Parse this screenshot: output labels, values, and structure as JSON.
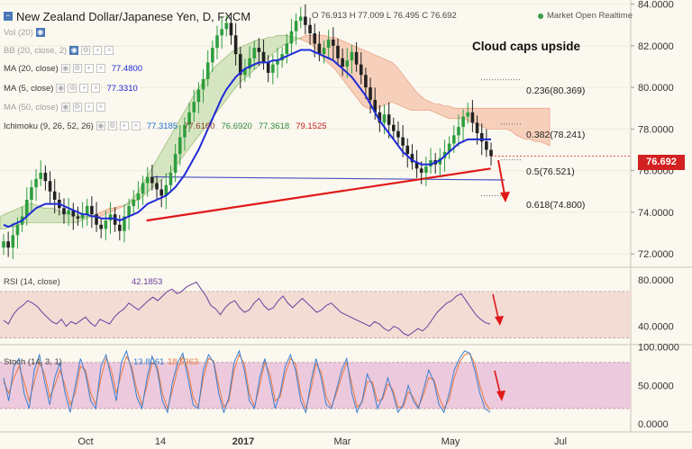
{
  "header": {
    "title": "New Zealand Dollar/Japanese Yen, D, FXCM",
    "ohlc": "O 76.913 H 77.009 L 76.495 C 76.692",
    "market_status": "Market Open Realtime"
  },
  "indicators": [
    {
      "name": "Vol (20)",
      "value": ""
    },
    {
      "name": "BB (20, close, 2)",
      "value": ""
    },
    {
      "name": "MA (20, close)",
      "value": "77.4800"
    },
    {
      "name": "MA (5, close)",
      "value": "77.3310"
    },
    {
      "name": "MA (50, close)",
      "value": ""
    },
    {
      "name": "Ichimoku (9, 26, 52, 26)",
      "values": [
        "77.3185",
        "77.6160",
        "76.6920",
        "77.3618",
        "79.1525"
      ]
    }
  ],
  "annotations": {
    "cloud_note": "Cloud caps upside",
    "fib_levels": [
      "0.236(80.369)",
      "0.382(78.241)",
      "0.5(76.521)",
      "0.618(74.800)"
    ],
    "last_price": "76.692"
  },
  "colors": {
    "candle_up": "#2e9e3e",
    "candle_down": "#222222",
    "ma20": "#1f2bd6",
    "trendline": "#e01818",
    "horizontal_line": "#4a4fc0",
    "cloud_bull": "#cfe2b8",
    "cloud_bear": "#f6c9b2",
    "rsi_line": "#6a3fa0",
    "stoch_k": "#3a7fd0",
    "stoch_d": "#e87a40",
    "badge": "#d32020"
  },
  "chart_data": [
    {
      "type": "candlestick",
      "title": "New Zealand Dollar/Japanese Yen, D, FXCM",
      "x_ticks": [
        "Oct",
        "14",
        "2017",
        "Mar",
        "May",
        "Jul"
      ],
      "y_ticks": [
        "84.0000",
        "82.0000",
        "80.0000",
        "78.0000",
        "76.0000",
        "74.0000",
        "72.0000"
      ],
      "ylim": [
        71.4,
        84.2
      ],
      "close_series": [
        72.6,
        72.3,
        72.9,
        73.4,
        73.8,
        74.6,
        75.2,
        75.6,
        75.9,
        75.5,
        75.0,
        74.6,
        74.2,
        73.9,
        74.1,
        73.8,
        73.7,
        73.9,
        74.3,
        73.9,
        73.4,
        73.2,
        73.6,
        73.9,
        73.4,
        73.1,
        73.8,
        74.3,
        74.6,
        74.9,
        75.4,
        75.7,
        75.4,
        75.1,
        74.8,
        75.3,
        75.9,
        76.8,
        77.6,
        78.2,
        78.8,
        79.3,
        79.9,
        80.4,
        81.2,
        81.9,
        82.5,
        82.8,
        83.1,
        82.5,
        81.6,
        80.6,
        80.9,
        81.4,
        81.9,
        81.7,
        81.2,
        80.7,
        81.1,
        81.3,
        81.6,
        82.1,
        82.7,
        83.2,
        83.4,
        83.0,
        82.6,
        82.1,
        81.6,
        81.9,
        82.3,
        82.0,
        81.4,
        81.0,
        81.3,
        81.7,
        81.1,
        80.6,
        80.0,
        79.4,
        78.8,
        78.3,
        78.7,
        78.2,
        77.9,
        77.6,
        77.2,
        76.8,
        76.4,
        76.1,
        75.9,
        76.2,
        76.5,
        76.3,
        76.6,
        76.9,
        77.3,
        77.7,
        78.1,
        78.6,
        78.8,
        78.3,
        77.8,
        77.4,
        77.0,
        76.7
      ],
      "ma20": [
        73.4,
        73.3,
        73.4,
        73.5,
        73.6,
        73.8,
        74.0,
        74.2,
        74.3,
        74.4,
        74.4,
        74.4,
        74.4,
        74.3,
        74.2,
        74.1,
        74.0,
        73.9,
        73.9,
        73.8,
        73.8,
        73.7,
        73.7,
        73.7,
        73.7,
        73.6,
        73.7,
        73.8,
        73.9,
        74.0,
        74.2,
        74.4,
        74.5,
        74.6,
        74.7,
        74.8,
        75.0,
        75.2,
        75.5,
        75.8,
        76.2,
        76.6,
        77.0,
        77.5,
        78.0,
        78.5,
        79.0,
        79.5,
        79.9,
        80.2,
        80.5,
        80.7,
        80.9,
        81.0,
        81.1,
        81.2,
        81.2,
        81.2,
        81.3,
        81.3,
        81.4,
        81.5,
        81.6,
        81.7,
        81.8,
        81.8,
        81.8,
        81.7,
        81.6,
        81.5,
        81.4,
        81.3,
        81.1,
        80.9,
        80.7,
        80.5,
        80.2,
        79.9,
        79.6,
        79.2,
        78.8,
        78.4,
        78.1,
        77.8,
        77.5,
        77.2,
        76.9,
        76.7,
        76.5,
        76.4,
        76.3,
        76.3,
        76.3,
        76.4,
        76.5,
        76.7,
        76.9,
        77.1,
        77.3,
        77.4,
        77.5,
        77.5,
        77.5,
        77.5,
        77.5,
        77.5
      ],
      "cloud_top": [
        73.8,
        73.9,
        74.0,
        74.1,
        74.2,
        74.3,
        74.4,
        74.4,
        74.3,
        74.2,
        74.2,
        74.2,
        74.1,
        74.0,
        74.0,
        73.9,
        73.9,
        73.8,
        73.8,
        73.8,
        73.8,
        73.8,
        73.9,
        74.0,
        74.1,
        74.2,
        74.3,
        74.5,
        74.7,
        75.0,
        75.4,
        75.8,
        76.2,
        76.6,
        77.0,
        77.4,
        77.8,
        78.2,
        78.6,
        79.0,
        79.4,
        79.8,
        80.1,
        80.4,
        80.7,
        81.0,
        81.2,
        81.4,
        81.6,
        81.8,
        81.9,
        82.0,
        82.1,
        82.2,
        82.3,
        82.3,
        82.4,
        82.4,
        82.5,
        82.5,
        82.5,
        82.4,
        82.4,
        82.3,
        82.2,
        82.1,
        81.9,
        81.6,
        81.3,
        81.1,
        80.9,
        80.6,
        80.3,
        80.0,
        79.7,
        79.4,
        79.1,
        79.0,
        79.0,
        79.0,
        79.1,
        79.2,
        79.3,
        79.2,
        79.1,
        79.0,
        78.9,
        78.9,
        78.9,
        78.9,
        78.9,
        78.8,
        78.7,
        78.6,
        78.5,
        78.5,
        78.5,
        78.5,
        78.4,
        78.3,
        78.2,
        78.1,
        78.0,
        78.0,
        78.0,
        78.0,
        78.0,
        77.9,
        77.7,
        77.6,
        77.5,
        77.5,
        77.4,
        77.4,
        77.3,
        77.2
      ],
      "cloud_bottom": [
        73.2,
        73.2,
        73.3,
        73.3,
        73.4,
        73.5,
        73.5,
        73.5,
        73.5,
        73.5,
        73.5,
        73.5,
        73.5,
        73.5,
        73.5,
        73.5,
        73.5,
        73.6,
        73.7,
        73.8,
        73.9,
        74.0,
        74.1,
        74.2,
        74.2,
        74.3,
        74.3,
        74.4,
        74.5,
        74.6,
        74.8,
        75.0,
        75.2,
        75.4,
        75.6,
        75.8,
        76.0,
        76.3,
        76.6,
        76.9,
        77.2,
        77.5,
        77.8,
        78.1,
        78.4,
        78.7,
        79.0,
        79.3,
        79.6,
        79.9,
        80.2,
        80.4,
        80.6,
        80.8,
        81.0,
        81.2,
        81.4,
        81.6,
        81.8,
        82.0,
        82.1,
        82.2,
        82.3,
        82.4,
        82.5,
        82.5,
        82.5,
        82.5,
        82.5,
        82.4,
        82.4,
        82.3,
        82.2,
        82.1,
        82.0,
        81.9,
        81.8,
        81.7,
        81.6,
        81.5,
        81.4,
        81.3,
        81.2,
        81.0,
        80.7,
        80.4,
        80.1,
        79.8,
        79.6,
        79.4,
        79.3,
        79.2,
        79.2,
        79.1,
        79.1,
        79.0,
        79.0,
        79.0,
        79.0,
        79.0,
        79.0,
        79.0,
        79.0,
        79.0,
        79.0,
        79.0,
        79.0,
        79.0,
        79.0,
        79.0,
        79.0,
        79.0,
        79.0,
        79.0,
        79.0,
        79.0
      ],
      "horizontal_line": 75.7,
      "trendline": [
        [
          0.268,
          73.6
        ],
        [
          0.968,
          76.1
        ]
      ],
      "fib_values": [
        80.369,
        78.241,
        76.521,
        74.8
      ],
      "last_price": 76.692
    },
    {
      "type": "line",
      "title": "RSI (14, close)",
      "value_label": "42.1853",
      "y_ticks": [
        "80.0000",
        "40.0000"
      ],
      "ylim": [
        25,
        90
      ],
      "band": [
        30,
        70
      ],
      "values": [
        45,
        42,
        50,
        55,
        58,
        62,
        60,
        57,
        52,
        48,
        44,
        42,
        46,
        40,
        44,
        42,
        45,
        48,
        43,
        40,
        46,
        44,
        42,
        48,
        52,
        55,
        60,
        57,
        54,
        58,
        62,
        65,
        62,
        66,
        70,
        72,
        68,
        70,
        74,
        76,
        78,
        72,
        66,
        58,
        55,
        50,
        56,
        60,
        62,
        56,
        52,
        54,
        60,
        64,
        58,
        54,
        56,
        62,
        66,
        60,
        56,
        60,
        64,
        60,
        56,
        52,
        54,
        58,
        60,
        56,
        52,
        50,
        48,
        46,
        44,
        42,
        40,
        44,
        42,
        38,
        36,
        40,
        38,
        34,
        32,
        35,
        38,
        36,
        40,
        46,
        52,
        56,
        60,
        62,
        66,
        68,
        62,
        56,
        50,
        46,
        43,
        42
      ]
    },
    {
      "type": "line",
      "title": "Stoch (14, 3, 1)",
      "value_labels": [
        "13.8061",
        "18.5363"
      ],
      "y_ticks": [
        "100.0000",
        "50.0000",
        "0.0000"
      ],
      "ylim": [
        -8,
        102
      ],
      "band": [
        20,
        80
      ],
      "k": [
        60,
        30,
        75,
        85,
        40,
        20,
        70,
        90,
        55,
        25,
        60,
        80,
        40,
        15,
        50,
        85,
        65,
        30,
        20,
        75,
        90,
        60,
        30,
        80,
        95,
        70,
        35,
        20,
        60,
        88,
        70,
        30,
        15,
        55,
        80,
        92,
        60,
        25,
        20,
        70,
        90,
        80,
        40,
        15,
        35,
        80,
        95,
        70,
        30,
        20,
        60,
        85,
        55,
        20,
        40,
        75,
        90,
        70,
        30,
        15,
        55,
        85,
        60,
        25,
        20,
        45,
        70,
        85,
        40,
        15,
        30,
        65,
        50,
        20,
        35,
        60,
        40,
        15,
        25,
        50,
        30,
        20,
        45,
        70,
        55,
        25,
        15,
        40,
        70,
        85,
        95,
        92,
        70,
        40,
        20,
        15
      ],
      "d": [
        55,
        40,
        60,
        75,
        55,
        30,
        55,
        80,
        65,
        35,
        50,
        70,
        50,
        25,
        40,
        75,
        70,
        40,
        25,
        60,
        85,
        70,
        40,
        65,
        88,
        75,
        45,
        25,
        50,
        80,
        75,
        40,
        20,
        45,
        72,
        88,
        70,
        35,
        22,
        60,
        85,
        82,
        50,
        22,
        30,
        70,
        90,
        78,
        40,
        22,
        50,
        80,
        65,
        30,
        35,
        65,
        85,
        78,
        40,
        20,
        45,
        78,
        68,
        35,
        22,
        40,
        62,
        80,
        52,
        22,
        28,
        55,
        55,
        30,
        32,
        52,
        45,
        22,
        22,
        42,
        35,
        22,
        38,
        60,
        58,
        35,
        20,
        32,
        60,
        80,
        90,
        92,
        78,
        50,
        28,
        18
      ]
    }
  ]
}
